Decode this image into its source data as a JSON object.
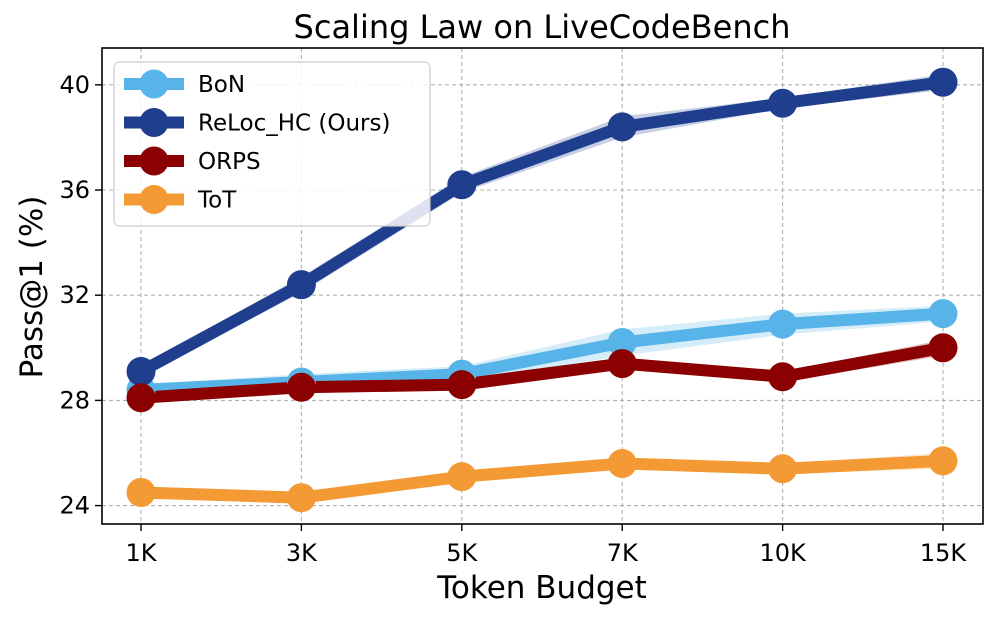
{
  "chart_data": {
    "type": "line",
    "title": "Scaling Law on LiveCodeBench",
    "xlabel": "Token Budget",
    "ylabel": "Pass@1 (%)",
    "categories": [
      "1K",
      "3K",
      "5K",
      "7K",
      "10K",
      "15K"
    ],
    "ylim": [
      23.3,
      41.4
    ],
    "yticks": [
      24,
      28,
      32,
      36,
      40
    ],
    "grid": true,
    "legend_position": "top-left",
    "series": [
      {
        "name": "BoN",
        "color": "#56B4E9",
        "values": [
          28.4,
          28.7,
          29.0,
          30.2,
          30.9,
          31.3
        ],
        "band": [
          0.2,
          0.3,
          0.3,
          0.5,
          0.4,
          0.3
        ]
      },
      {
        "name": "ReLoc_HC (Ours)",
        "color": "#1F3E8E",
        "values": [
          29.1,
          32.4,
          36.2,
          38.4,
          39.3,
          40.1
        ],
        "band": [
          0.2,
          0.3,
          0.3,
          0.4,
          0.2,
          0.3
        ]
      },
      {
        "name": "ORPS",
        "color": "#8B0000",
        "values": [
          28.1,
          28.5,
          28.6,
          29.4,
          28.9,
          30.0
        ],
        "band": [
          0.2,
          0.2,
          0.2,
          0.2,
          0.2,
          0.3
        ]
      },
      {
        "name": "ToT",
        "color": "#F39A35",
        "values": [
          24.5,
          24.3,
          25.1,
          25.6,
          25.4,
          25.7
        ],
        "band": [
          0.2,
          0.2,
          0.2,
          0.2,
          0.2,
          0.3
        ]
      }
    ]
  }
}
